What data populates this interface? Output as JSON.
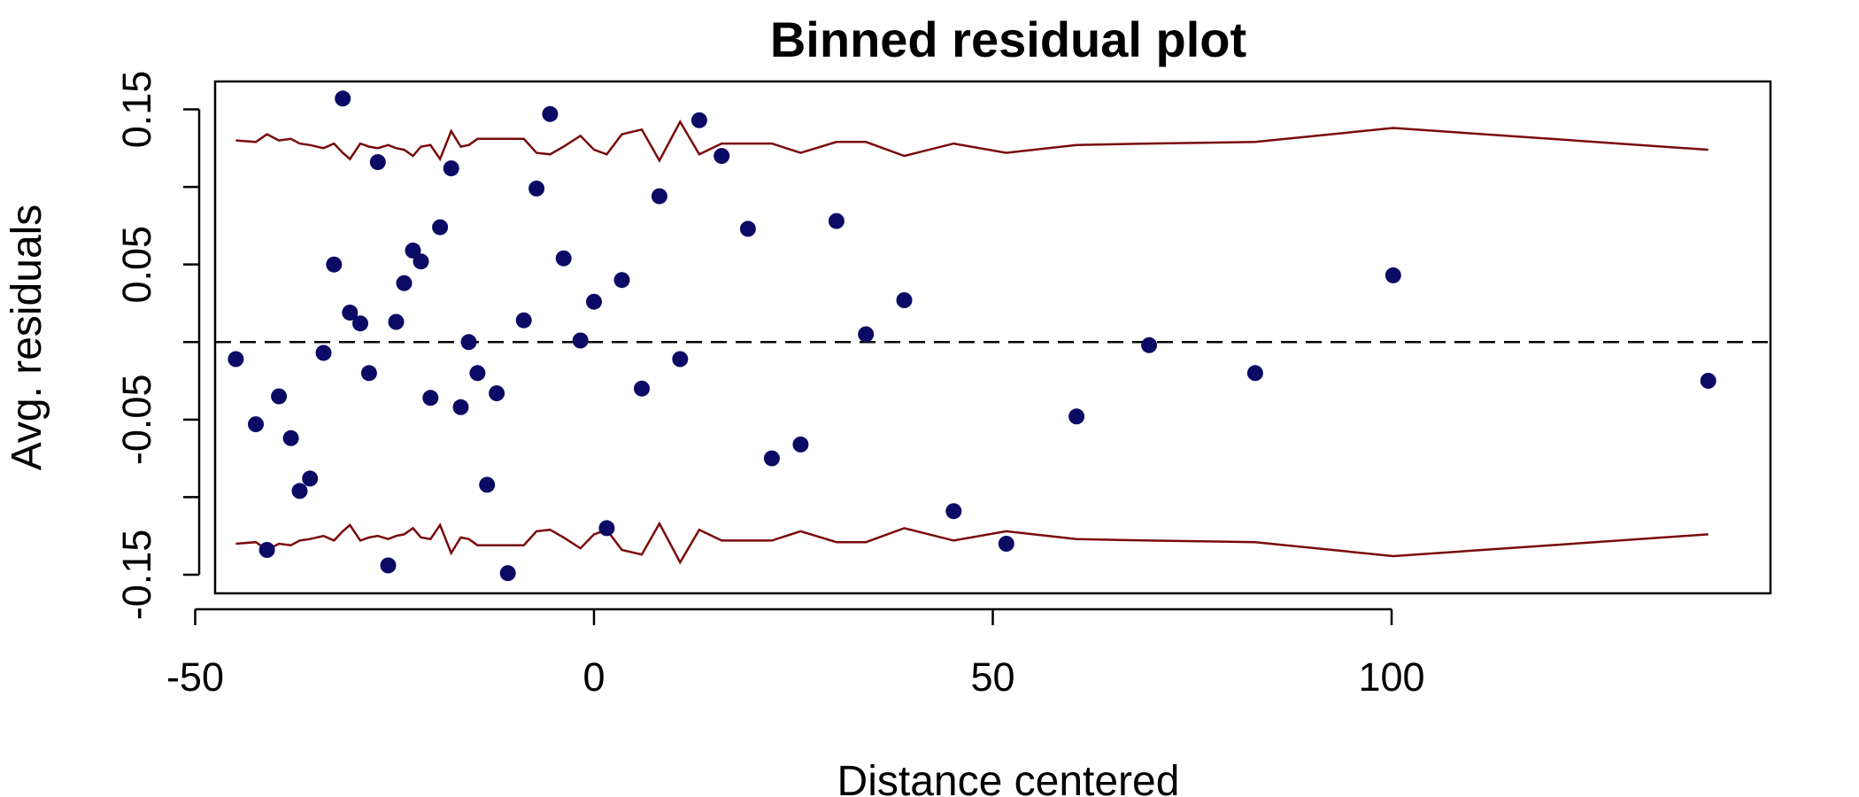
{
  "chart_data": {
    "type": "scatter",
    "title": "Binned residual plot",
    "xlabel": "Distance centered",
    "ylabel": "Avg. residuals",
    "xlim": [
      -47.5,
      147.5
    ],
    "ylim": [
      -0.162,
      0.168
    ],
    "x_ticks": [
      -50,
      0,
      50,
      100
    ],
    "x_tick_labels": [
      "-50",
      "0",
      "50",
      "100"
    ],
    "y_ticks": [
      -0.15,
      -0.1,
      -0.05,
      0.0,
      0.05,
      0.1,
      0.15
    ],
    "y_tick_labels": [
      "-0.15",
      "",
      "-0.05",
      "",
      "0.05",
      "",
      "0.15"
    ],
    "reference_line": {
      "y": 0,
      "style": "dashed",
      "color": "#000000"
    },
    "grid": false,
    "colors": {
      "points": "#0b0b66",
      "bounds": "#7a0a0a"
    },
    "points": {
      "x": [
        -44.9,
        -42.4,
        -41.0,
        -39.5,
        -38.0,
        -36.9,
        -35.6,
        -33.9,
        -32.6,
        -31.5,
        -30.6,
        -29.3,
        -28.2,
        -27.1,
        -25.8,
        -24.8,
        -23.8,
        -22.7,
        -21.7,
        -20.5,
        -19.3,
        -17.9,
        -16.7,
        -15.7,
        -14.6,
        -12.2,
        -13.4,
        -10.8,
        -8.8,
        -7.2,
        -5.5,
        -3.8,
        -1.7,
        0.0,
        1.6,
        3.5,
        6.0,
        8.2,
        10.8,
        13.2,
        16.0,
        19.3,
        22.3,
        25.9,
        30.4,
        34.1,
        38.9,
        45.1,
        51.7,
        60.5,
        69.6,
        82.9,
        100.2,
        139.7
      ],
      "y": [
        -0.011,
        -0.053,
        -0.134,
        -0.035,
        -0.062,
        -0.096,
        -0.088,
        -0.007,
        0.05,
        0.157,
        0.019,
        0.012,
        -0.02,
        0.116,
        -0.144,
        0.013,
        0.038,
        0.059,
        0.052,
        -0.036,
        0.074,
        0.112,
        -0.042,
        0.0,
        -0.02,
        -0.033,
        -0.092,
        -0.149,
        0.014,
        0.099,
        0.147,
        0.054,
        0.001,
        0.026,
        -0.12,
        0.04,
        -0.03,
        0.094,
        -0.011,
        0.143,
        0.12,
        0.073,
        -0.075,
        -0.066,
        0.078,
        0.005,
        0.027,
        -0.109,
        -0.13,
        -0.048,
        -0.002,
        -0.02,
        0.043,
        -0.025
      ]
    },
    "bounds": {
      "x": [
        -44.9,
        -42.4,
        -41.0,
        -39.5,
        -38.0,
        -36.9,
        -35.6,
        -33.9,
        -32.6,
        -31.5,
        -30.6,
        -29.3,
        -28.2,
        -27.1,
        -25.8,
        -24.8,
        -23.8,
        -22.7,
        -21.7,
        -20.5,
        -19.3,
        -17.9,
        -16.7,
        -15.7,
        -14.6,
        -13.4,
        -12.2,
        -10.8,
        -8.8,
        -7.2,
        -5.5,
        -3.8,
        -1.7,
        0.0,
        1.6,
        3.5,
        6.0,
        8.2,
        10.8,
        13.2,
        16.0,
        19.3,
        22.3,
        25.9,
        30.4,
        34.1,
        38.9,
        45.1,
        51.7,
        60.5,
        69.6,
        82.9,
        100.2,
        139.7
      ],
      "upper": [
        0.13,
        0.129,
        0.134,
        0.13,
        0.131,
        0.128,
        0.127,
        0.125,
        0.128,
        0.122,
        0.118,
        0.128,
        0.126,
        0.125,
        0.127,
        0.125,
        0.124,
        0.12,
        0.126,
        0.127,
        0.118,
        0.136,
        0.126,
        0.127,
        0.131,
        0.131,
        0.131,
        0.131,
        0.131,
        0.122,
        0.121,
        0.126,
        0.133,
        0.124,
        0.121,
        0.134,
        0.137,
        0.117,
        0.142,
        0.121,
        0.128,
        0.128,
        0.128,
        0.122,
        0.129,
        0.129,
        0.12,
        0.128,
        0.122,
        0.127,
        0.128,
        0.129,
        0.138,
        0.124
      ],
      "lower": [
        -0.13,
        -0.129,
        -0.134,
        -0.13,
        -0.131,
        -0.128,
        -0.127,
        -0.125,
        -0.128,
        -0.122,
        -0.118,
        -0.128,
        -0.126,
        -0.125,
        -0.127,
        -0.125,
        -0.124,
        -0.12,
        -0.126,
        -0.127,
        -0.118,
        -0.136,
        -0.126,
        -0.127,
        -0.131,
        -0.131,
        -0.131,
        -0.131,
        -0.131,
        -0.122,
        -0.121,
        -0.126,
        -0.133,
        -0.124,
        -0.121,
        -0.134,
        -0.137,
        -0.117,
        -0.142,
        -0.121,
        -0.128,
        -0.128,
        -0.128,
        -0.122,
        -0.129,
        -0.129,
        -0.12,
        -0.128,
        -0.122,
        -0.127,
        -0.128,
        -0.129,
        -0.138,
        -0.124
      ]
    }
  }
}
